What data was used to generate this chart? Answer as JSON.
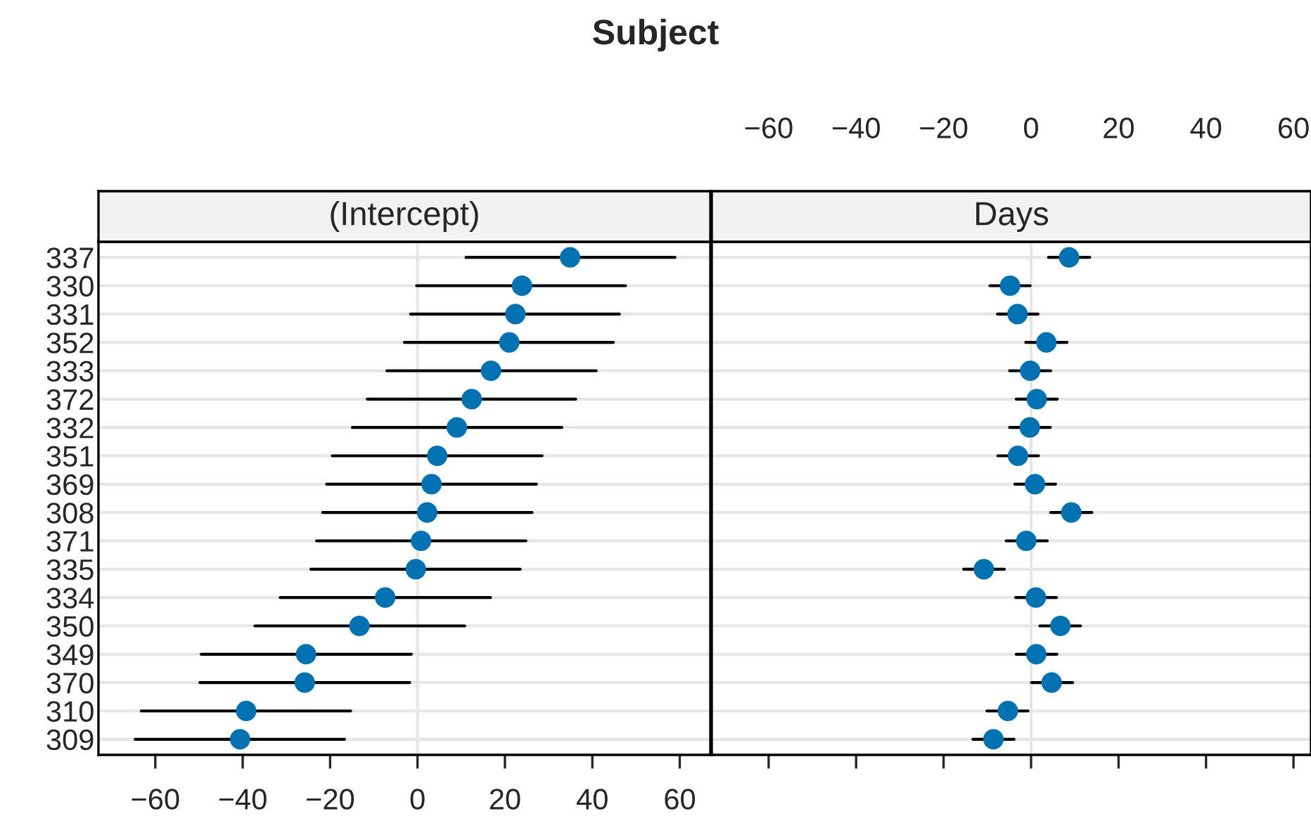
{
  "chart_data": [
    {
      "type": "scatter",
      "title": "Subject",
      "subtitle": "(Intercept)",
      "orientation": "horizontal",
      "categories": [
        "337",
        "330",
        "331",
        "352",
        "333",
        "372",
        "332",
        "351",
        "369",
        "308",
        "371",
        "335",
        "334",
        "350",
        "349",
        "370",
        "310",
        "309"
      ],
      "series": [
        {
          "color": "#0072b2",
          "values": [
            34.9,
            23.9,
            22.4,
            21.0,
            16.8,
            12.4,
            9.0,
            4.5,
            3.2,
            2.2,
            0.8,
            -0.4,
            -7.4,
            -13.3,
            -25.5,
            -25.8,
            -39.2,
            -40.6
          ],
          "errors": [
            [
              11.1,
              58.9
            ],
            [
              -0.2,
              47.6
            ],
            [
              -1.6,
              46.2
            ],
            [
              -3.0,
              44.8
            ],
            [
              -7.0,
              40.9
            ],
            [
              -11.5,
              36.2
            ],
            [
              -14.9,
              33.0
            ],
            [
              -19.5,
              28.5
            ],
            [
              -20.8,
              27.2
            ],
            [
              -21.7,
              26.2
            ],
            [
              -23.1,
              24.8
            ],
            [
              -24.4,
              23.5
            ],
            [
              -31.4,
              16.7
            ],
            [
              -37.2,
              10.8
            ],
            [
              -49.5,
              -1.4
            ],
            [
              -49.8,
              -1.8
            ],
            [
              -63.2,
              -15.3
            ],
            [
              -64.6,
              -16.7
            ]
          ]
        }
      ],
      "xlim": [
        -73,
        67
      ],
      "xticks": [
        -60,
        -40,
        -20,
        0,
        20,
        40,
        60
      ],
      "ref_lines": [
        {
          "axis": "x",
          "value": 0,
          "color": "#e6e6e6"
        }
      ],
      "grid": "y",
      "marker": "circle"
    },
    {
      "type": "scatter",
      "subtitle": "Days",
      "orientation": "horizontal",
      "categories": [
        "337",
        "330",
        "331",
        "352",
        "333",
        "372",
        "332",
        "351",
        "369",
        "308",
        "371",
        "335",
        "334",
        "350",
        "349",
        "370",
        "310",
        "309"
      ],
      "series": [
        {
          "color": "#0072b2",
          "values": [
            8.7,
            -4.8,
            -3.1,
            3.5,
            -0.2,
            1.3,
            -0.3,
            -3.0,
            0.9,
            9.2,
            -1.1,
            -10.8,
            1.1,
            6.7,
            1.2,
            4.7,
            -5.3,
            -8.6
          ],
          "errors": [
            [
              4.0,
              13.4
            ],
            [
              -9.4,
              -0.2
            ],
            [
              -7.7,
              1.6
            ],
            [
              -1.2,
              8.2
            ],
            [
              -4.9,
              4.5
            ],
            [
              -3.4,
              6.0
            ],
            [
              -4.9,
              4.4
            ],
            [
              -7.6,
              1.7
            ],
            [
              -3.7,
              5.6
            ],
            [
              4.5,
              13.9
            ],
            [
              -5.7,
              3.7
            ],
            [
              -15.4,
              -6.1
            ],
            [
              -3.5,
              5.8
            ],
            [
              2.0,
              11.3
            ],
            [
              -3.4,
              5.9
            ],
            [
              0.1,
              9.5
            ],
            [
              -10.1,
              -0.7
            ],
            [
              -13.3,
              -3.9
            ]
          ]
        }
      ],
      "xlim": [
        -73,
        64
      ],
      "xticks": [
        -60,
        -40,
        -20,
        0,
        20,
        40,
        60
      ],
      "ref_lines": [
        {
          "axis": "x",
          "value": 0,
          "color": "#e6e6e6"
        }
      ],
      "grid": "y",
      "marker": "circle",
      "tick_labels": "x"
    }
  ]
}
